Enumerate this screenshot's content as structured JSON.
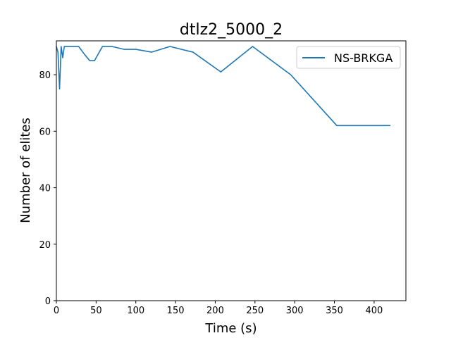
{
  "chart_data": {
    "type": "line",
    "title": "dtlz2_5000_2",
    "xlabel": "Time (s)",
    "ylabel": "Number of elites",
    "xlim": [
      0,
      440
    ],
    "ylim": [
      0,
      92
    ],
    "xticks": [
      0,
      50,
      100,
      150,
      200,
      250,
      300,
      350,
      400
    ],
    "yticks": [
      0,
      20,
      40,
      60,
      80
    ],
    "grid": false,
    "legend_position": "top-right",
    "series": [
      {
        "name": "NS-BRKGA",
        "color": "#1f77b4",
        "x": [
          0,
          2,
          4,
          6,
          8,
          10,
          20,
          28,
          36,
          42,
          48,
          58,
          70,
          85,
          100,
          120,
          143,
          172,
          207,
          247,
          295,
          353,
          420
        ],
        "y": [
          90,
          88,
          75,
          90,
          86,
          90,
          90,
          90,
          87,
          85,
          85,
          90,
          90,
          89,
          89,
          88,
          90,
          88,
          81,
          90,
          80,
          62,
          62
        ]
      }
    ]
  }
}
